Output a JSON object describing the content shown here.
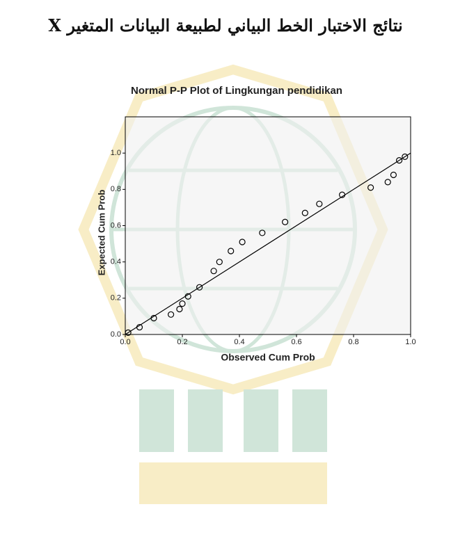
{
  "heading": "نتائج الاختبار الخط البياني لطبيعة البيانات المتغير X",
  "chart_data": {
    "type": "scatter",
    "title": "Normal P-P Plot of Lingkungan pendidikan",
    "x_label": "Observed Cum Prob",
    "y_label": "Expected Cum Prob",
    "x": [
      0.01,
      0.05,
      0.1,
      0.16,
      0.19,
      0.2,
      0.22,
      0.26,
      0.31,
      0.33,
      0.37,
      0.41,
      0.48,
      0.56,
      0.63,
      0.68,
      0.76,
      0.86,
      0.92,
      0.94,
      0.96,
      0.98
    ],
    "values": [
      0.01,
      0.04,
      0.09,
      0.11,
      0.14,
      0.17,
      0.21,
      0.26,
      0.35,
      0.4,
      0.46,
      0.51,
      0.56,
      0.62,
      0.67,
      0.72,
      0.77,
      0.81,
      0.84,
      0.88,
      0.96,
      0.98
    ],
    "color": "#000000",
    "xlim": [
      0,
      1
    ],
    "ylim": [
      0,
      1.2
    ],
    "xticks": [
      {
        "value": 0,
        "label": "0.0"
      },
      {
        "value": 0.2,
        "label": "0.2"
      },
      {
        "value": 0.4,
        "label": "0.4"
      },
      {
        "value": 0.6,
        "label": "0.6"
      },
      {
        "value": 0.8,
        "label": "0.8"
      },
      {
        "value": 1,
        "label": "1.0"
      }
    ],
    "yticks": [
      {
        "value": 0,
        "label": "0.0"
      },
      {
        "value": 0.2,
        "label": "0.2"
      },
      {
        "value": 0.4,
        "label": "0.4"
      },
      {
        "value": 0.6,
        "label": "0.6"
      },
      {
        "value": 0.8,
        "label": "0.8"
      },
      {
        "value": 1,
        "label": "1.0"
      }
    ],
    "reference_line": true
  }
}
